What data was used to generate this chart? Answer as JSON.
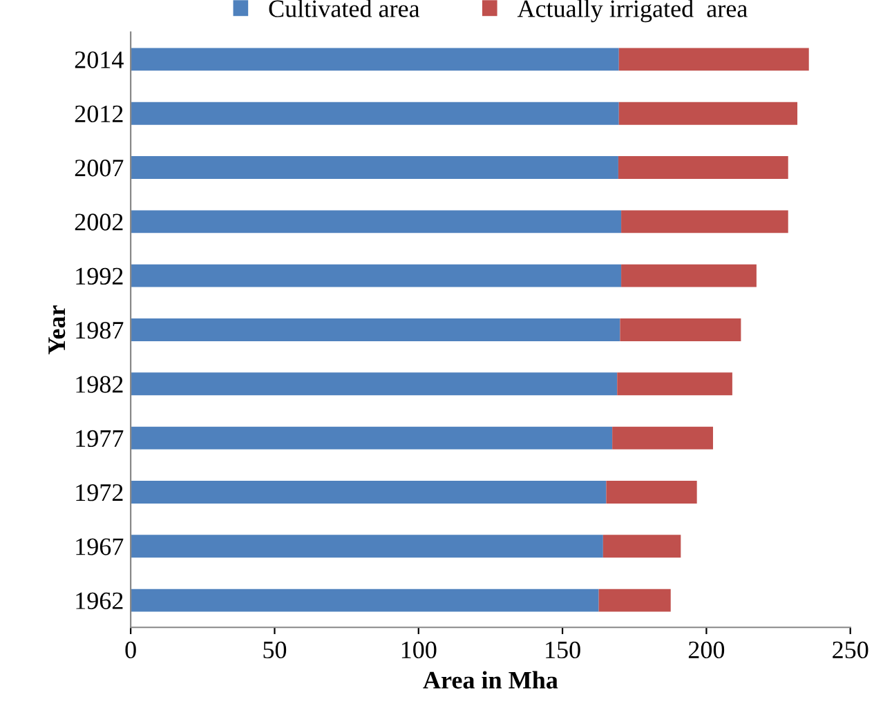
{
  "chart_data": {
    "type": "bar",
    "orientation": "horizontal",
    "stacked": true,
    "categories": [
      "2014",
      "2012",
      "2007",
      "2002",
      "1992",
      "1987",
      "1982",
      "1977",
      "1972",
      "1967",
      "1962"
    ],
    "series": [
      {
        "name": "Cultivated area",
        "color": "#4f81bd",
        "values": [
          169.6,
          169.6,
          169.4,
          170.4,
          170.4,
          170,
          169,
          167.3,
          165.2,
          164.1,
          162.6
        ]
      },
      {
        "name": "Actually irrigated  area",
        "color": "#c0504d",
        "values": [
          66,
          62,
          59,
          58,
          47,
          42,
          40,
          35,
          31.5,
          27,
          25
        ]
      }
    ],
    "xlim": [
      0,
      250
    ],
    "xticks": [
      0,
      50,
      100,
      150,
      200,
      250
    ],
    "xlabel": "Area in Mha",
    "ylabel": "Year",
    "legend": "top",
    "grid": false
  }
}
